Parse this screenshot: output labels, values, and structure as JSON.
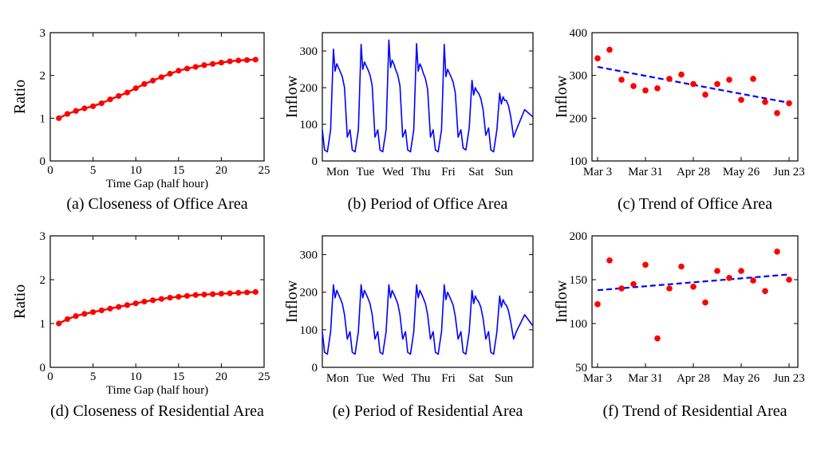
{
  "chart_data": [
    {
      "id": "a",
      "type": "line",
      "caption": "(a) Closeness of Office Area",
      "xlabel": "Time Gap (half hour)",
      "ylabel": "Ratio",
      "xlim": [
        0,
        25
      ],
      "ylim": [
        0,
        3
      ],
      "xticks": [
        "0",
        "5",
        "10",
        "15",
        "20",
        "25"
      ],
      "yticks": [
        "0",
        "1",
        "2",
        "3"
      ],
      "line_color": "#ff0000",
      "markers": true,
      "x": [
        1,
        2,
        3,
        4,
        5,
        6,
        7,
        8,
        9,
        10,
        11,
        12,
        13,
        14,
        15,
        16,
        17,
        18,
        19,
        20,
        21,
        22,
        23,
        24
      ],
      "y": [
        1.0,
        1.1,
        1.17,
        1.23,
        1.28,
        1.35,
        1.44,
        1.52,
        1.6,
        1.7,
        1.8,
        1.88,
        1.96,
        2.04,
        2.11,
        2.16,
        2.2,
        2.24,
        2.27,
        2.3,
        2.33,
        2.35,
        2.36,
        2.37
      ]
    },
    {
      "id": "b",
      "type": "line",
      "caption": "(b) Period of Office Area",
      "xlabel": "",
      "ylabel": "Inflow",
      "ylim": [
        0,
        350
      ],
      "xticks": [
        "Mon",
        "Tue",
        "Wed",
        "Thu",
        "Fri",
        "Sat",
        "Sun"
      ],
      "yticks": [
        "0",
        "100",
        "200",
        "300"
      ],
      "line_color": "#0000ff",
      "days": [
        {
          "night": 25,
          "peak": 305,
          "second": 265,
          "evening": 230
        },
        {
          "night": 25,
          "peak": 318,
          "second": 270,
          "evening": 235
        },
        {
          "night": 25,
          "peak": 330,
          "second": 275,
          "evening": 235
        },
        {
          "night": 25,
          "peak": 320,
          "second": 265,
          "evening": 225
        },
        {
          "night": 25,
          "peak": 318,
          "second": 250,
          "evening": 215
        },
        {
          "night": 30,
          "peak": 220,
          "second": 200,
          "evening": 170
        },
        {
          "night": 25,
          "peak": 185,
          "second": 175,
          "evening": 150
        }
      ],
      "end_value": 120
    },
    {
      "id": "c",
      "type": "scatter",
      "caption": "(c) Trend of Office Area",
      "xlabel": "",
      "ylabel": "Inflow",
      "xlim": [
        0,
        16
      ],
      "ylim": [
        100,
        400
      ],
      "xticks": [
        "Mar 3",
        "Mar 31",
        "Apr 28",
        "May 26",
        "Jun 23"
      ],
      "yticks": [
        "100",
        "200",
        "300",
        "400"
      ],
      "point_color": "#ff0000",
      "trend_color": "#0000ff",
      "x": [
        0,
        1,
        2,
        3,
        4,
        5,
        6,
        7,
        8,
        9,
        10,
        11,
        12,
        13,
        14,
        15,
        16
      ],
      "y": [
        340,
        360,
        290,
        275,
        265,
        270,
        292,
        302,
        280,
        255,
        280,
        290,
        243,
        292,
        238,
        212,
        235
      ],
      "trend": [
        320,
        236
      ]
    },
    {
      "id": "d",
      "type": "line",
      "caption": "(d) Closeness of Residential Area",
      "xlabel": "Time Gap (half hour)",
      "ylabel": "Ratio",
      "xlim": [
        0,
        25
      ],
      "ylim": [
        0,
        3
      ],
      "xticks": [
        "0",
        "5",
        "10",
        "15",
        "20",
        "25"
      ],
      "yticks": [
        "0",
        "1",
        "2",
        "3"
      ],
      "line_color": "#ff0000",
      "markers": true,
      "x": [
        1,
        2,
        3,
        4,
        5,
        6,
        7,
        8,
        9,
        10,
        11,
        12,
        13,
        14,
        15,
        16,
        17,
        18,
        19,
        20,
        21,
        22,
        23,
        24
      ],
      "y": [
        1.0,
        1.1,
        1.17,
        1.22,
        1.26,
        1.3,
        1.34,
        1.38,
        1.42,
        1.46,
        1.5,
        1.53,
        1.56,
        1.59,
        1.61,
        1.63,
        1.65,
        1.66,
        1.67,
        1.68,
        1.69,
        1.7,
        1.71,
        1.72
      ]
    },
    {
      "id": "e",
      "type": "line",
      "caption": "(e) Period of Residential Area",
      "xlabel": "",
      "ylabel": "Inflow",
      "ylim": [
        0,
        350
      ],
      "xticks": [
        "Mon",
        "Tue",
        "Wed",
        "Thu",
        "Fri",
        "Sat",
        "Sun"
      ],
      "yticks": [
        "0",
        "100",
        "200",
        "300"
      ],
      "line_color": "#0000ff",
      "days": [
        {
          "night": 35,
          "peak": 220,
          "second": 205,
          "evening": 170
        },
        {
          "night": 35,
          "peak": 220,
          "second": 205,
          "evening": 170
        },
        {
          "night": 35,
          "peak": 220,
          "second": 205,
          "evening": 170
        },
        {
          "night": 35,
          "peak": 220,
          "second": 205,
          "evening": 170
        },
        {
          "night": 35,
          "peak": 220,
          "second": 200,
          "evening": 165
        },
        {
          "night": 35,
          "peak": 205,
          "second": 190,
          "evening": 160
        },
        {
          "night": 35,
          "peak": 190,
          "second": 180,
          "evening": 150
        }
      ],
      "end_value": 110
    },
    {
      "id": "f",
      "type": "scatter",
      "caption": "(f) Trend of Residential Area",
      "xlabel": "",
      "ylabel": "Inflow",
      "xlim": [
        0,
        16
      ],
      "ylim": [
        50,
        200
      ],
      "xticks": [
        "Mar 3",
        "Mar 31",
        "Apr 28",
        "May 26",
        "Jun 23"
      ],
      "yticks": [
        "50",
        "100",
        "150",
        "200"
      ],
      "point_color": "#ff0000",
      "trend_color": "#0000ff",
      "x": [
        0,
        1,
        2,
        3,
        4,
        5,
        6,
        7,
        8,
        9,
        10,
        11,
        12,
        13,
        14,
        15,
        16
      ],
      "y": [
        122,
        172,
        140,
        145,
        167,
        83,
        140,
        165,
        142,
        124,
        160,
        152,
        160,
        149,
        137,
        182,
        150
      ],
      "trend": [
        138,
        156
      ]
    }
  ]
}
